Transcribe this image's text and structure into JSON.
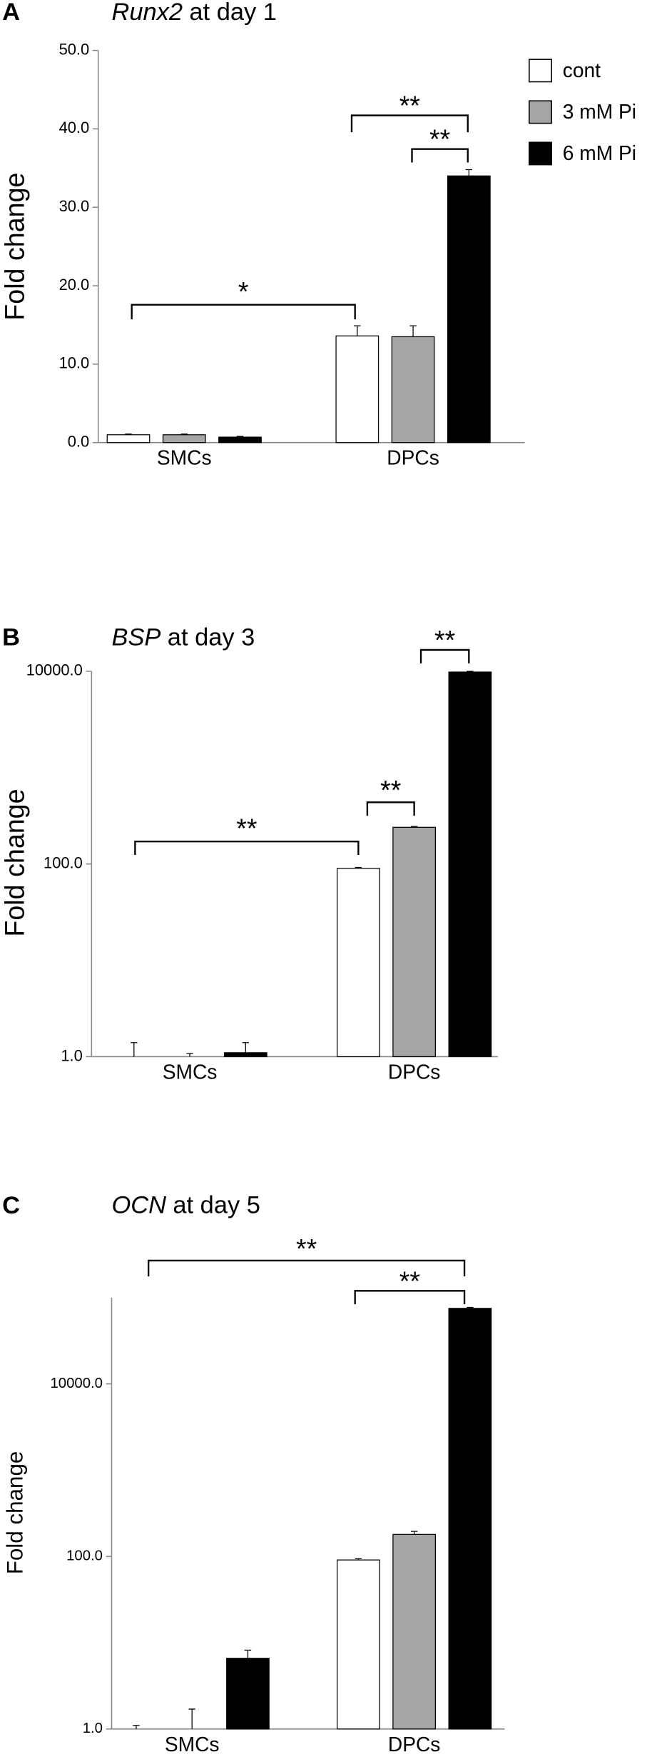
{
  "chart_data": [
    {
      "type": "bar",
      "panel": "A",
      "title_gene": "Runx2",
      "title_rest": "at day 1",
      "y_label": "Fold change",
      "categories": [
        "SMCs",
        "DPCs"
      ],
      "scale": "linear",
      "ylim": [
        0,
        50
      ],
      "yticks": [
        {
          "value": 0,
          "label": "0.0"
        },
        {
          "value": 10,
          "label": "10.0"
        },
        {
          "value": 20,
          "label": "20.0"
        },
        {
          "value": 30,
          "label": "30.0"
        },
        {
          "value": 40,
          "label": "40.0"
        },
        {
          "value": 50,
          "label": "50.0"
        }
      ],
      "legend": "upper right",
      "series": [
        {
          "name": "cont",
          "color": "#ffffff",
          "values": [
            1.0,
            13.6
          ],
          "errors": [
            0.1,
            1.3
          ]
        },
        {
          "name": "3 mM Pi",
          "color": "#a6a6a6",
          "values": [
            1.0,
            13.5
          ],
          "errors": [
            0.1,
            1.4
          ]
        },
        {
          "name": "6 mM Pi",
          "color": "#000000",
          "values": [
            0.7,
            34.0
          ],
          "errors": [
            0.1,
            0.8
          ]
        }
      ],
      "annotations": [
        "*",
        "**",
        "**"
      ]
    },
    {
      "type": "bar",
      "panel": "B",
      "title_gene": "BSP",
      "title_rest": "at day 3",
      "y_label": "Fold change",
      "categories": [
        "SMCs",
        "DPCs"
      ],
      "scale": "log",
      "ylim": [
        1,
        10000
      ],
      "yticks": [
        {
          "value": 1,
          "label": "1.0"
        },
        {
          "value": 100,
          "label": "100.0"
        },
        {
          "value": 10000,
          "label": "10000.0"
        }
      ],
      "series": [
        {
          "color": "#ffffff",
          "values": [
            1.0,
            90
          ],
          "errors": [
            0.4,
            2
          ]
        },
        {
          "color": "#a6a6a6",
          "values": [
            1.0,
            240
          ],
          "errors": [
            0.08,
            5
          ]
        },
        {
          "color": "#000000",
          "values": [
            1.1,
            9800
          ],
          "errors": [
            0.3,
            200
          ]
        }
      ],
      "annotations": [
        "**",
        "**",
        "**"
      ]
    },
    {
      "type": "bar",
      "panel": "C",
      "title_gene": "OCN",
      "title_rest": "at day 5",
      "y_label": "Fold change",
      "categories": [
        "SMCs",
        "DPCs"
      ],
      "scale": "log",
      "ylim": [
        1,
        100000
      ],
      "yticks": [
        {
          "value": 1,
          "label": "1.0"
        },
        {
          "value": 100,
          "label": "100.0"
        },
        {
          "value": 10000,
          "label": "10000.0"
        }
      ],
      "series": [
        {
          "color": "#ffffff",
          "values": [
            1.0,
            91
          ],
          "errors": [
            0.1,
            3
          ]
        },
        {
          "color": "#a6a6a6",
          "values": [
            1.0,
            180
          ],
          "errors": [
            0.7,
            15
          ]
        },
        {
          "color": "#000000",
          "values": [
            6.6,
            75000
          ],
          "errors": [
            1.6,
            2000
          ]
        }
      ],
      "annotations": [
        "**",
        "**"
      ]
    }
  ]
}
